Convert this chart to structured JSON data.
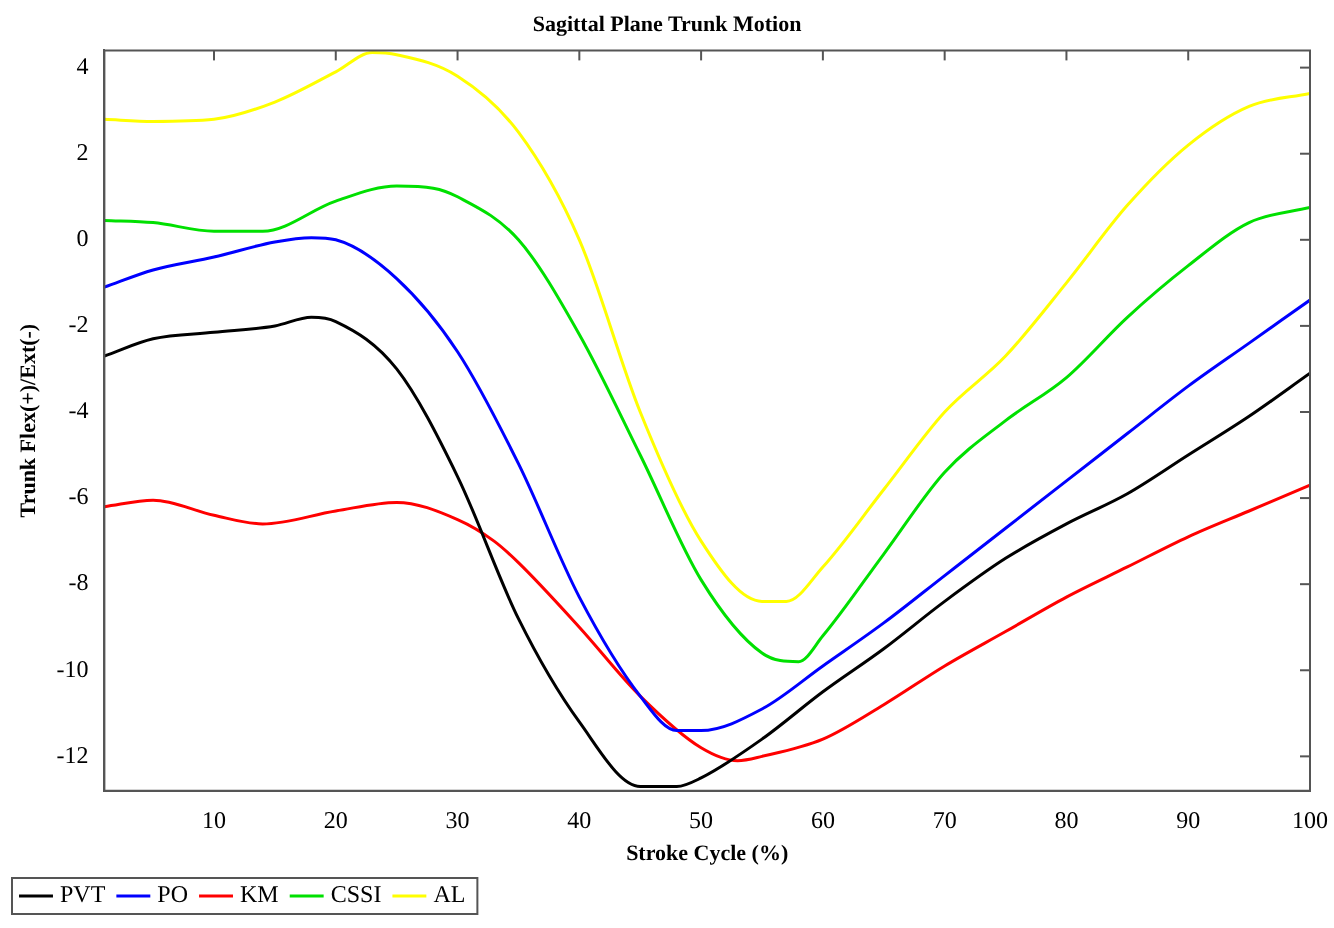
{
  "chart_data": {
    "type": "line",
    "title": "Sagittal Plane Trunk Motion",
    "xlabel": "Stroke Cycle (%)",
    "ylabel": "Trunk Flex(+)/Ext(-)",
    "xlim": [
      1,
      100
    ],
    "xticks": [
      10,
      20,
      30,
      40,
      50,
      60,
      70,
      80,
      90,
      100
    ],
    "ylim": [
      -12.8,
      4.4
    ],
    "yticks": [
      -12,
      -10,
      -8,
      -6,
      -4,
      -2,
      0,
      2,
      4
    ],
    "grid": false,
    "legend": "bottom left",
    "marker": "none",
    "line_style": "solid",
    "series": [
      {
        "name": "PVT",
        "color": "#000000",
        "x": [
          1,
          5,
          10,
          15,
          18,
          20,
          25,
          30,
          35,
          40,
          45,
          48,
          50,
          55,
          60,
          65,
          70,
          75,
          80,
          85,
          90,
          95,
          100
        ],
        "values": [
          -2.7,
          -2.3,
          -2.15,
          -2.0,
          -1.8,
          -1.9,
          -3.0,
          -5.5,
          -8.8,
          -11.2,
          -12.7,
          -12.7,
          -12.5,
          -11.6,
          -10.5,
          -9.5,
          -8.4,
          -7.4,
          -6.6,
          -5.9,
          -5.0,
          -4.1,
          -3.1
        ]
      },
      {
        "name": "PO",
        "color": "#0000ff",
        "x": [
          1,
          5,
          10,
          15,
          18,
          20,
          25,
          30,
          35,
          40,
          45,
          48,
          50,
          55,
          60,
          65,
          70,
          75,
          80,
          85,
          90,
          95,
          100
        ],
        "values": [
          -1.1,
          -0.7,
          -0.4,
          -0.05,
          0.05,
          0,
          -0.9,
          -2.6,
          -5.2,
          -8.3,
          -10.6,
          -11.4,
          -11.4,
          -10.9,
          -9.9,
          -8.9,
          -7.8,
          -6.7,
          -5.6,
          -4.5,
          -3.4,
          -2.4,
          -1.4
        ]
      },
      {
        "name": "KM",
        "color": "#ff0000",
        "x": [
          1,
          5,
          10,
          14,
          20,
          25,
          30,
          33,
          35,
          40,
          45,
          50,
          53,
          55,
          60,
          65,
          70,
          75,
          80,
          85,
          90,
          95,
          100
        ],
        "values": [
          -6.2,
          -6.05,
          -6.4,
          -6.6,
          -6.3,
          -6.1,
          -6.5,
          -7.0,
          -7.5,
          -9.0,
          -10.6,
          -11.8,
          -12.1,
          -12.0,
          -11.6,
          -10.8,
          -9.9,
          -9.1,
          -8.3,
          -7.6,
          -6.9,
          -6.3,
          -5.7
        ]
      },
      {
        "name": "CSSI",
        "color": "#00e000",
        "x": [
          1,
          5,
          10,
          14,
          20,
          25,
          28,
          30,
          35,
          40,
          45,
          50,
          55,
          58,
          60,
          65,
          70,
          75,
          80,
          85,
          90,
          95,
          100
        ],
        "values": [
          0.45,
          0.4,
          0.2,
          0.2,
          0.9,
          1.25,
          1.2,
          1.0,
          0.0,
          -2.2,
          -5,
          -7.9,
          -9.6,
          -9.8,
          -9.2,
          -7.3,
          -5.4,
          -4.2,
          -3.2,
          -1.8,
          -0.6,
          0.4,
          0.75
        ]
      },
      {
        "name": "AL",
        "color": "#ffff00",
        "x": [
          1,
          5,
          10,
          15,
          20,
          23,
          25,
          30,
          35,
          40,
          45,
          50,
          55,
          57,
          60,
          65,
          70,
          75,
          80,
          85,
          90,
          95,
          100
        ],
        "values": [
          2.8,
          2.75,
          2.8,
          3.2,
          3.9,
          4.35,
          4.3,
          3.8,
          2.5,
          0,
          -4,
          -7,
          -8.4,
          -8.4,
          -7.6,
          -5.8,
          -4,
          -2.7,
          -1,
          0.8,
          2.2,
          3.1,
          3.4
        ]
      }
    ]
  }
}
